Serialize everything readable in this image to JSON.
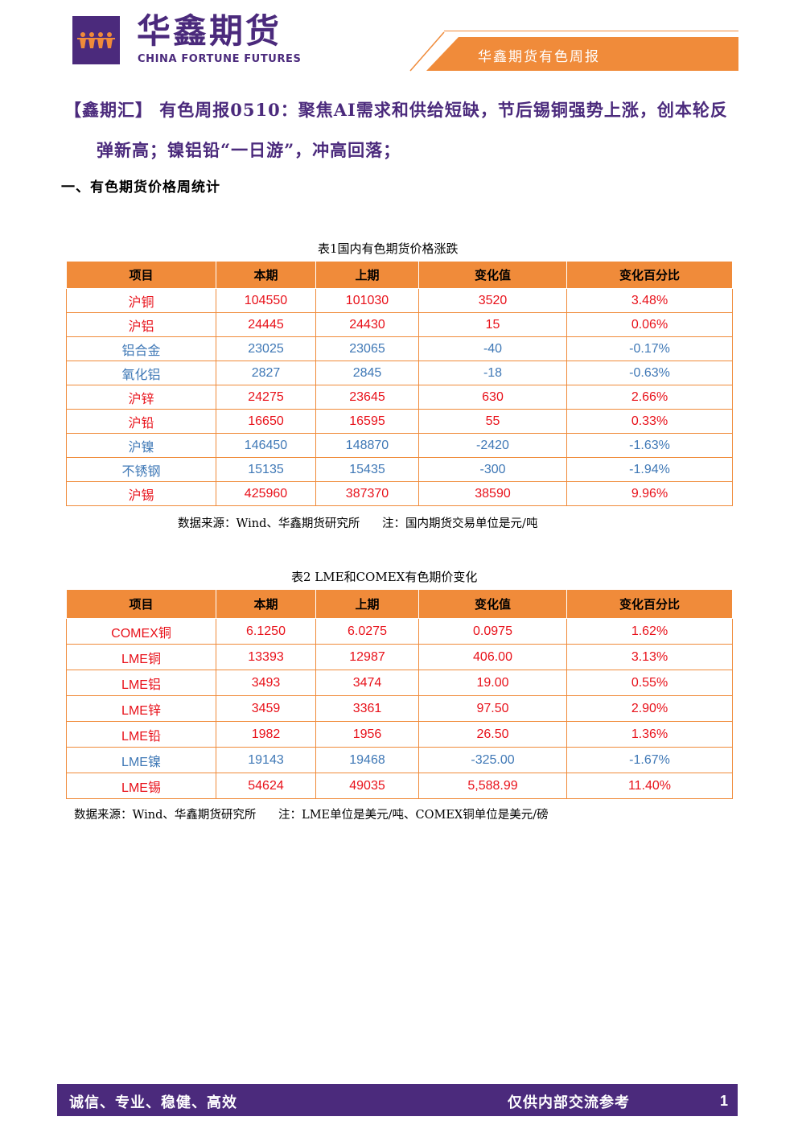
{
  "header": {
    "logo_cn": "华鑫期货",
    "logo_en": "CHINA FORTUNE FUTURES",
    "band_text": "华鑫期货有色周报",
    "brand_color": "#4b2a7c",
    "accent_color": "#f08b3a"
  },
  "title": {
    "line1": "【鑫期汇】 有色周报0510：聚焦AI需求和供给短缺，节后锡铜强势上涨，创本轮反",
    "line2": "弹新高；镍铝铅“一日游”，冲高回落；"
  },
  "section_heading": "一、有色期货价格周统计",
  "table1": {
    "caption": "表1国内有色期货价格涨跌",
    "headers": [
      "项目",
      "本期",
      "上期",
      "变化值",
      "变化百分比"
    ],
    "rows": [
      {
        "trend": "up",
        "cells": [
          "沪铜",
          "104550",
          "101030",
          "3520",
          "3.48%"
        ]
      },
      {
        "trend": "up",
        "cells": [
          "沪铝",
          "24445",
          "24430",
          "15",
          "0.06%"
        ]
      },
      {
        "trend": "down",
        "cells": [
          "铝合金",
          "23025",
          "23065",
          "-40",
          "-0.17%"
        ]
      },
      {
        "trend": "down",
        "cells": [
          "氧化铝",
          "2827",
          "2845",
          "-18",
          "-0.63%"
        ]
      },
      {
        "trend": "up",
        "cells": [
          "沪锌",
          "24275",
          "23645",
          "630",
          "2.66%"
        ]
      },
      {
        "trend": "up",
        "cells": [
          "沪铅",
          "16650",
          "16595",
          "55",
          "0.33%"
        ]
      },
      {
        "trend": "down",
        "cells": [
          "沪镍",
          "146450",
          "148870",
          "-2420",
          "-1.63%"
        ]
      },
      {
        "trend": "down",
        "cells": [
          "不锈钢",
          "15135",
          "15435",
          "-300",
          "-1.94%"
        ]
      },
      {
        "trend": "up",
        "cells": [
          "沪锡",
          "425960",
          "387370",
          "38590",
          "9.96%"
        ]
      }
    ],
    "note": "数据来源：Wind、华鑫期货研究所      注：国内期货交易单位是元/吨"
  },
  "table2": {
    "caption": "表2 LME和COMEX有色期价变化",
    "headers": [
      "项目",
      "本期",
      "上期",
      "变化值",
      "变化百分比"
    ],
    "rows": [
      {
        "trend": "up",
        "cells": [
          "COMEX铜",
          "6.1250",
          "6.0275",
          "0.0975",
          "1.62%"
        ]
      },
      {
        "trend": "up",
        "cells": [
          "LME铜",
          "13393",
          "12987",
          "406.00",
          "3.13%"
        ]
      },
      {
        "trend": "up",
        "cells": [
          "LME铝",
          "3493",
          "3474",
          "19.00",
          "0.55%"
        ]
      },
      {
        "trend": "up",
        "cells": [
          "LME锌",
          "3459",
          "3361",
          "97.50",
          "2.90%"
        ]
      },
      {
        "trend": "up",
        "cells": [
          "LME铅",
          "1982",
          "1956",
          "26.50",
          "1.36%"
        ]
      },
      {
        "trend": "down",
        "cells": [
          "LME镍",
          "19143",
          "19468",
          "-325.00",
          "-1.67%"
        ]
      },
      {
        "trend": "up",
        "cells": [
          "LME锡",
          "54624",
          "49035",
          "5,588.99",
          "11.40%"
        ]
      }
    ],
    "note": "数据来源：Wind、华鑫期货研究所      注：LME单位是美元/吨、COMEX铜单位是美元/磅"
  },
  "footer": {
    "left": "诚信、专业、稳健、高效",
    "right": "仅供内部交流参考",
    "page": "1"
  },
  "colors": {
    "up": "#e8111a",
    "down": "#3f78b6"
  }
}
